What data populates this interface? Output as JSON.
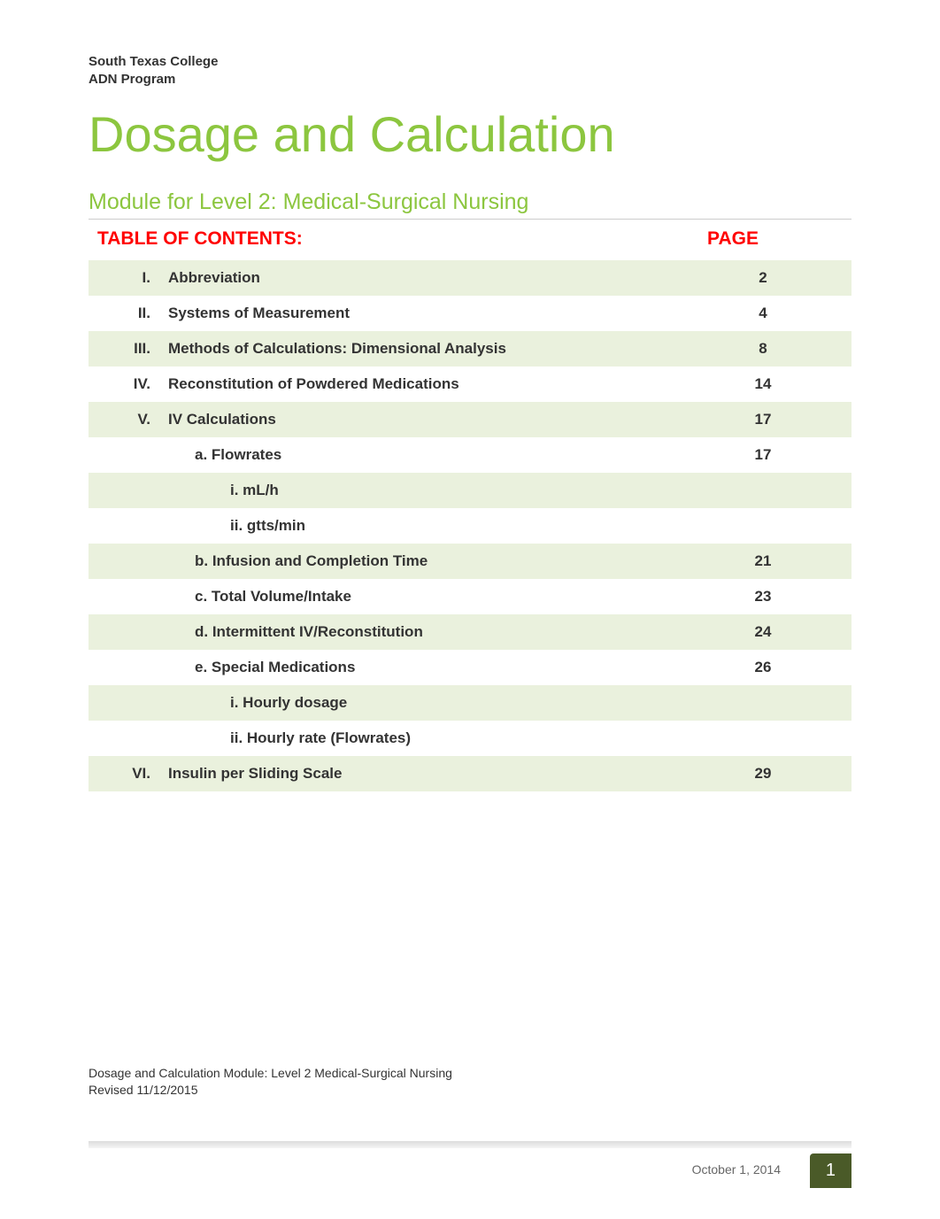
{
  "header": {
    "institution": "South Texas College",
    "program": "ADN Program"
  },
  "title": "Dosage and Calculation",
  "subtitle": "Module for Level 2: Medical-Surgical Nursing",
  "toc_header": {
    "label": "TABLE OF CONTENTS:",
    "page_label": "PAGE"
  },
  "toc_rows": [
    {
      "roman": "I.",
      "title": "Abbreviation",
      "page": "2",
      "indent": 0,
      "shaded": true
    },
    {
      "roman": "II.",
      "title": "Systems of Measurement",
      "page": "4",
      "indent": 0,
      "shaded": false
    },
    {
      "roman": "III.",
      "title": "Methods of Calculations: Dimensional Analysis",
      "page": "8",
      "indent": 0,
      "shaded": true
    },
    {
      "roman": "IV.",
      "title": "Reconstitution of Powdered Medications",
      "page": "14",
      "indent": 0,
      "shaded": false
    },
    {
      "roman": "V.",
      "title": "IV Calculations",
      "page": "17",
      "indent": 0,
      "shaded": true
    },
    {
      "roman": "",
      "title": "a.  Flowrates",
      "page": "17",
      "indent": 1,
      "shaded": false
    },
    {
      "roman": "",
      "title": "i.  mL/h",
      "page": "",
      "indent": 2,
      "shaded": true
    },
    {
      "roman": "",
      "title": "ii.  gtts/min",
      "page": "",
      "indent": 2,
      "shaded": false
    },
    {
      "roman": "",
      "title": "b.  Infusion and Completion Time",
      "page": "21",
      "indent": 1,
      "shaded": true
    },
    {
      "roman": "",
      "title": "c.  Total Volume/Intake",
      "page": "23",
      "indent": 1,
      "shaded": false
    },
    {
      "roman": "",
      "title": "d.  Intermittent IV/Reconstitution",
      "page": "24",
      "indent": 1,
      "shaded": true
    },
    {
      "roman": "",
      "title": "e.  Special Medications",
      "page": "26",
      "indent": 1,
      "shaded": false
    },
    {
      "roman": "",
      "title": "i.  Hourly dosage",
      "page": "",
      "indent": 2,
      "shaded": true
    },
    {
      "roman": "",
      "title": "ii.  Hourly rate (Flowrates)",
      "page": "",
      "indent": 2,
      "shaded": false
    },
    {
      "roman": "VI.",
      "title": "Insulin per Sliding Scale",
      "page": "29",
      "indent": 0,
      "shaded": true
    }
  ],
  "footer": {
    "module_text": "Dosage and Calculation Module: Level 2 Medical-Surgical Nursing",
    "revised": "Revised 11/12/2015",
    "date": "October 1, 2014",
    "page_number": "1"
  },
  "colors": {
    "accent_green": "#8cc63f",
    "shade_green": "#eaf1dd",
    "red": "#ff0000",
    "dark_green": "#4a5a28"
  }
}
